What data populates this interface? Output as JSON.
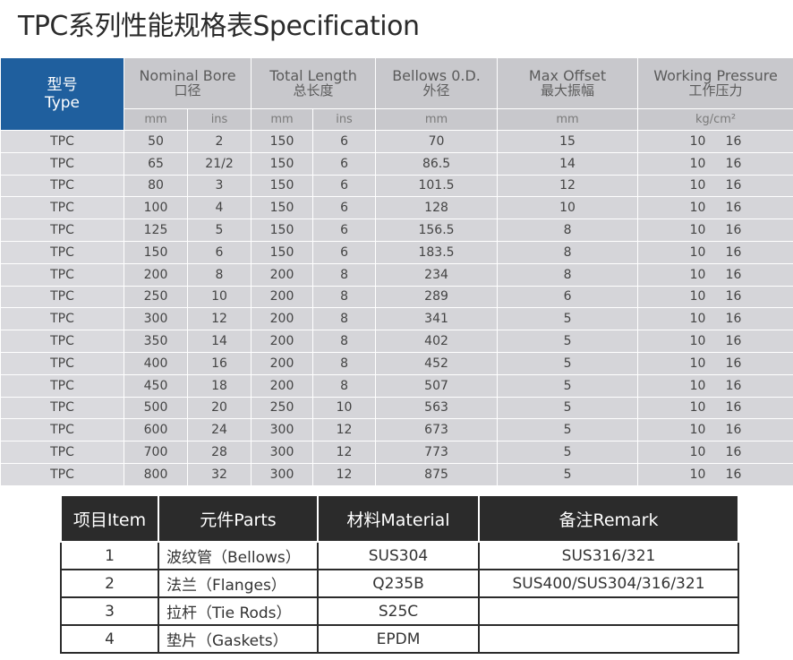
{
  "title": "TPC系列性能规格表Specification",
  "spec": {
    "headers": {
      "type_zh": "型号",
      "type_en": "Type",
      "bore_en": "Nominal Bore",
      "bore_zh": "口径",
      "length_en": "Total Length",
      "length_zh": "总长度",
      "od_en": "Bellows 0.D.",
      "od_zh": "外径",
      "offset_en": "Max Offset",
      "offset_zh": "最大振幅",
      "pressure_en": "Working Pressure",
      "pressure_zh": "工作压力"
    },
    "units": {
      "mm": "mm",
      "ins": "ins",
      "pressure": "kg/cm²"
    },
    "rows": [
      {
        "type": "TPC",
        "bore_mm": "50",
        "bore_in": "2",
        "len_mm": "150",
        "len_in": "6",
        "od": "70",
        "offset": "15",
        "p1": "10",
        "p2": "16"
      },
      {
        "type": "TPC",
        "bore_mm": "65",
        "bore_in": "21/2",
        "len_mm": "150",
        "len_in": "6",
        "od": "86.5",
        "offset": "14",
        "p1": "10",
        "p2": "16"
      },
      {
        "type": "TPC",
        "bore_mm": "80",
        "bore_in": "3",
        "len_mm": "150",
        "len_in": "6",
        "od": "101.5",
        "offset": "12",
        "p1": "10",
        "p2": "16"
      },
      {
        "type": "TPC",
        "bore_mm": "100",
        "bore_in": "4",
        "len_mm": "150",
        "len_in": "6",
        "od": "128",
        "offset": "10",
        "p1": "10",
        "p2": "16"
      },
      {
        "type": "TPC",
        "bore_mm": "125",
        "bore_in": "5",
        "len_mm": "150",
        "len_in": "6",
        "od": "156.5",
        "offset": "8",
        "p1": "10",
        "p2": "16"
      },
      {
        "type": "TPC",
        "bore_mm": "150",
        "bore_in": "6",
        "len_mm": "150",
        "len_in": "6",
        "od": "183.5",
        "offset": "8",
        "p1": "10",
        "p2": "16"
      },
      {
        "type": "TPC",
        "bore_mm": "200",
        "bore_in": "8",
        "len_mm": "200",
        "len_in": "8",
        "od": "234",
        "offset": "8",
        "p1": "10",
        "p2": "16"
      },
      {
        "type": "TPC",
        "bore_mm": "250",
        "bore_in": "10",
        "len_mm": "200",
        "len_in": "8",
        "od": "289",
        "offset": "6",
        "p1": "10",
        "p2": "16"
      },
      {
        "type": "TPC",
        "bore_mm": "300",
        "bore_in": "12",
        "len_mm": "200",
        "len_in": "8",
        "od": "341",
        "offset": "5",
        "p1": "10",
        "p2": "16"
      },
      {
        "type": "TPC",
        "bore_mm": "350",
        "bore_in": "14",
        "len_mm": "200",
        "len_in": "8",
        "od": "402",
        "offset": "5",
        "p1": "10",
        "p2": "16"
      },
      {
        "type": "TPC",
        "bore_mm": "400",
        "bore_in": "16",
        "len_mm": "200",
        "len_in": "8",
        "od": "452",
        "offset": "5",
        "p1": "10",
        "p2": "16"
      },
      {
        "type": "TPC",
        "bore_mm": "450",
        "bore_in": "18",
        "len_mm": "200",
        "len_in": "8",
        "od": "507",
        "offset": "5",
        "p1": "10",
        "p2": "16"
      },
      {
        "type": "TPC",
        "bore_mm": "500",
        "bore_in": "20",
        "len_mm": "250",
        "len_in": "10",
        "od": "563",
        "offset": "5",
        "p1": "10",
        "p2": "16"
      },
      {
        "type": "TPC",
        "bore_mm": "600",
        "bore_in": "24",
        "len_mm": "300",
        "len_in": "12",
        "od": "673",
        "offset": "5",
        "p1": "10",
        "p2": "16"
      },
      {
        "type": "TPC",
        "bore_mm": "700",
        "bore_in": "28",
        "len_mm": "300",
        "len_in": "12",
        "od": "773",
        "offset": "5",
        "p1": "10",
        "p2": "16"
      },
      {
        "type": "TPC",
        "bore_mm": "800",
        "bore_in": "32",
        "len_mm": "300",
        "len_in": "12",
        "od": "875",
        "offset": "5",
        "p1": "10",
        "p2": "16"
      }
    ]
  },
  "parts": {
    "headers": {
      "item": "项目Item",
      "parts": "元件Parts",
      "material": "材料Material",
      "remark": "备注Remark"
    },
    "rows": [
      {
        "item": "1",
        "part": "波纹管（Bellows）",
        "material": "SUS304",
        "remark": "SUS316/321"
      },
      {
        "item": "2",
        "part": "法兰（Flanges）",
        "material": "Q235B",
        "remark": "SUS400/SUS304/316/321"
      },
      {
        "item": "3",
        "part": "拉杆（Tie Rods）",
        "material": "S25C",
        "remark": ""
      },
      {
        "item": "4",
        "part": "垫片（Gaskets）",
        "material": "EPDM",
        "remark": ""
      }
    ]
  }
}
